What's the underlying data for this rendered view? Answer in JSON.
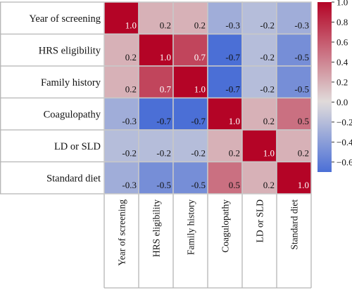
{
  "chart_data": {
    "type": "heatmap",
    "rows": [
      "Year of screening",
      "HRS eligibility",
      "Family history",
      "Coagulopathy",
      "LD or SLD",
      "Standard diet"
    ],
    "columns": [
      "Year of screening",
      "HRS eligibility",
      "Family history",
      "Coagulopathy",
      "LD or SLD",
      "Standard diet"
    ],
    "values": [
      [
        1.0,
        0.2,
        0.2,
        -0.3,
        -0.2,
        -0.3
      ],
      [
        0.2,
        1.0,
        0.7,
        -0.7,
        -0.2,
        -0.5
      ],
      [
        0.2,
        0.7,
        1.0,
        -0.7,
        -0.2,
        -0.5
      ],
      [
        -0.3,
        -0.7,
        -0.7,
        1.0,
        0.2,
        0.5
      ],
      [
        -0.2,
        -0.2,
        -0.2,
        0.2,
        1.0,
        0.2
      ],
      [
        -0.3,
        -0.5,
        -0.5,
        0.5,
        0.2,
        1.0
      ]
    ],
    "value_labels": [
      [
        "1.0",
        "0.2",
        "0.2",
        "-0.3",
        "-0.2",
        "-0.3"
      ],
      [
        "0.2",
        "1.0",
        "0.7",
        "-0.7",
        "-0.2",
        "-0.5"
      ],
      [
        "0.2",
        "0.7",
        "1.0",
        "-0.7",
        "-0.2",
        "-0.5"
      ],
      [
        "-0.3",
        "-0.7",
        "-0.7",
        "1.0",
        "0.2",
        "0.5"
      ],
      [
        "-0.2",
        "-0.2",
        "-0.2",
        "0.2",
        "1.0",
        "0.2"
      ],
      [
        "-0.3",
        "-0.5",
        "-0.5",
        "0.5",
        "0.2",
        "1.0"
      ]
    ],
    "colorbar": {
      "range": [
        -0.7,
        1.0
      ],
      "ticks": [
        1.0,
        0.8,
        0.6,
        0.4,
        0.2,
        0.0,
        -0.2,
        -0.4,
        -0.6
      ],
      "tick_labels": [
        "1.0",
        "0.8",
        "0.6",
        "0.4",
        "0.2",
        "0.0",
        "−0.2",
        "−0.4",
        "−0.6"
      ],
      "colormap": "coolwarm",
      "colors": {
        "low": "#4b6fd6",
        "mid": "#e0dcdb",
        "high": "#b40426"
      }
    },
    "title": "",
    "xlabel": "",
    "ylabel": ""
  }
}
